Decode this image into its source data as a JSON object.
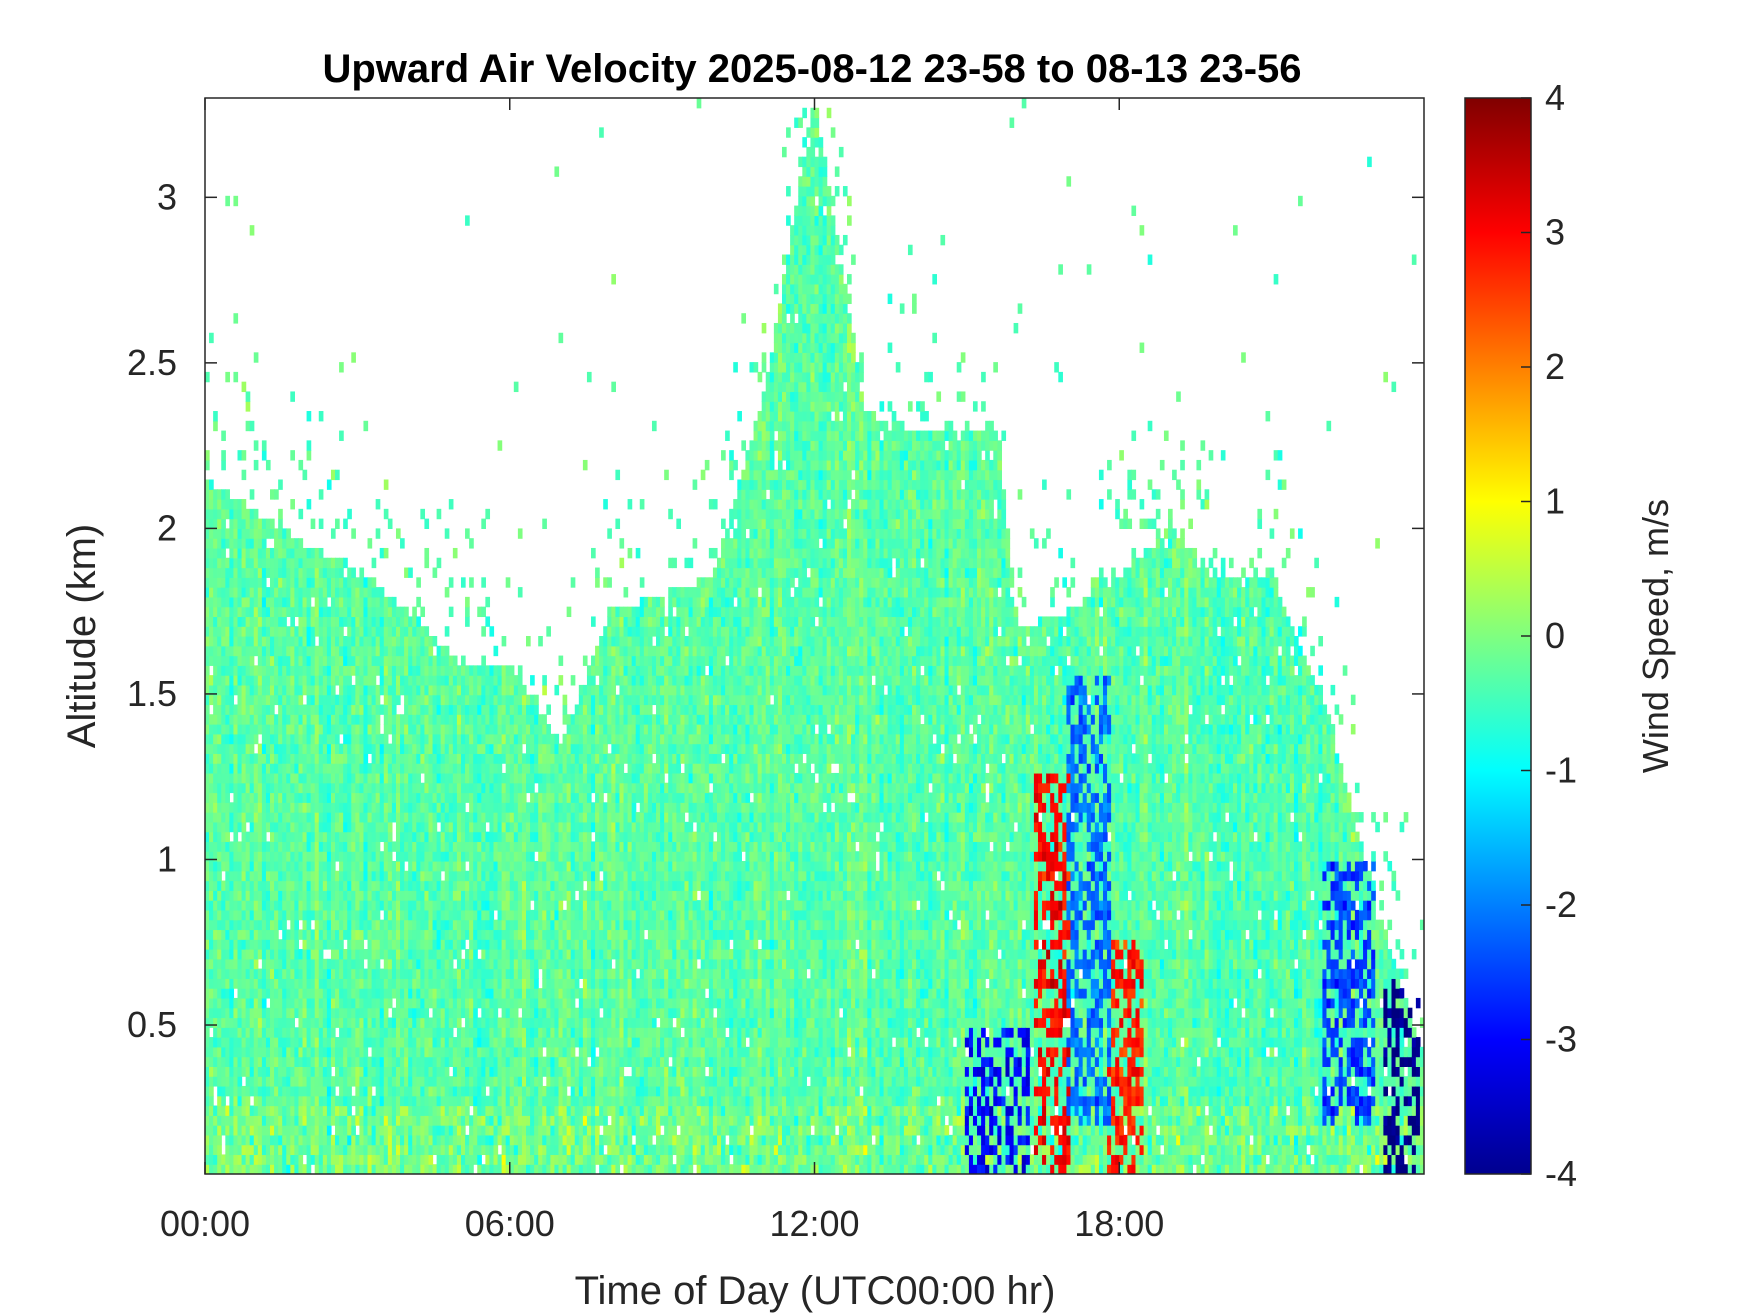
{
  "chart_data": {
    "type": "heatmap",
    "title": "Upward Air Velocity 2025-08-12 23-58 to 08-13 23-56",
    "xlabel": "Time of Day (UTC00:00 hr)",
    "ylabel": "Altitude (km)",
    "colorbar_label": "Wind Speed, m/s",
    "x_unit": "hour of day (UTC)",
    "xlim": [
      0,
      24
    ],
    "ylim": [
      0.05,
      3.3
    ],
    "clim": [
      -4,
      4
    ],
    "colormap": "jet",
    "grid": false,
    "x_ticks": [
      {
        "value": 0,
        "label": "00:00"
      },
      {
        "value": 6,
        "label": "06:00"
      },
      {
        "value": 12,
        "label": "12:00"
      },
      {
        "value": 18,
        "label": "18:00"
      }
    ],
    "y_ticks": [
      {
        "value": 0.5,
        "label": "0.5"
      },
      {
        "value": 1,
        "label": "1"
      },
      {
        "value": 1.5,
        "label": "1.5"
      },
      {
        "value": 2,
        "label": "2"
      },
      {
        "value": 2.5,
        "label": "2.5"
      },
      {
        "value": 3,
        "label": "3"
      }
    ],
    "colorbar_ticks": [
      {
        "value": 4,
        "label": "4"
      },
      {
        "value": 3,
        "label": "3"
      },
      {
        "value": 2,
        "label": "2"
      },
      {
        "value": 1,
        "label": "1"
      },
      {
        "value": 0,
        "label": "0"
      },
      {
        "value": -1,
        "label": "-1"
      },
      {
        "value": -2,
        "label": "-2"
      },
      {
        "value": -3,
        "label": "-3"
      },
      {
        "value": -4,
        "label": "-4"
      }
    ],
    "data_coverage_top_km": [
      {
        "x": 0.0,
        "top": 2.15
      },
      {
        "x": 1.0,
        "top": 2.05
      },
      {
        "x": 2.0,
        "top": 1.95
      },
      {
        "x": 3.0,
        "top": 1.88
      },
      {
        "x": 4.0,
        "top": 1.75
      },
      {
        "x": 5.0,
        "top": 1.6
      },
      {
        "x": 6.0,
        "top": 1.6
      },
      {
        "x": 7.0,
        "top": 1.35
      },
      {
        "x": 8.0,
        "top": 1.75
      },
      {
        "x": 9.0,
        "top": 1.8
      },
      {
        "x": 10.0,
        "top": 1.85
      },
      {
        "x": 11.0,
        "top": 2.4
      },
      {
        "x": 12.0,
        "top": 3.3
      },
      {
        "x": 13.0,
        "top": 2.35
      },
      {
        "x": 14.0,
        "top": 2.3
      },
      {
        "x": 15.0,
        "top": 2.3
      },
      {
        "x": 15.6,
        "top": 2.3
      },
      {
        "x": 16.0,
        "top": 1.7
      },
      {
        "x": 17.0,
        "top": 1.75
      },
      {
        "x": 18.0,
        "top": 1.85
      },
      {
        "x": 19.0,
        "top": 2.0
      },
      {
        "x": 20.0,
        "top": 1.85
      },
      {
        "x": 21.0,
        "top": 1.85
      },
      {
        "x": 22.0,
        "top": 1.5
      },
      {
        "x": 23.0,
        "top": 0.9
      },
      {
        "x": 24.0,
        "top": 0.4
      }
    ],
    "features": [
      {
        "x_range": [
          16.3,
          17.0
        ],
        "alt_range": [
          0.05,
          1.25
        ],
        "value": 3.0
      },
      {
        "x_range": [
          17.8,
          18.5
        ],
        "alt_range": [
          0.05,
          0.75
        ],
        "value": 2.8
      },
      {
        "x_range": [
          15.0,
          16.2
        ],
        "alt_range": [
          0.05,
          0.5
        ],
        "value": -3.0
      },
      {
        "x_range": [
          17.0,
          17.8
        ],
        "alt_range": [
          0.2,
          1.55
        ],
        "value": -2.2
      },
      {
        "x_range": [
          22.0,
          23.0
        ],
        "alt_range": [
          0.2,
          1.0
        ],
        "value": -2.5
      },
      {
        "x_range": [
          23.2,
          23.9
        ],
        "alt_range": [
          0.05,
          0.65
        ],
        "value": -4.0
      }
    ]
  }
}
